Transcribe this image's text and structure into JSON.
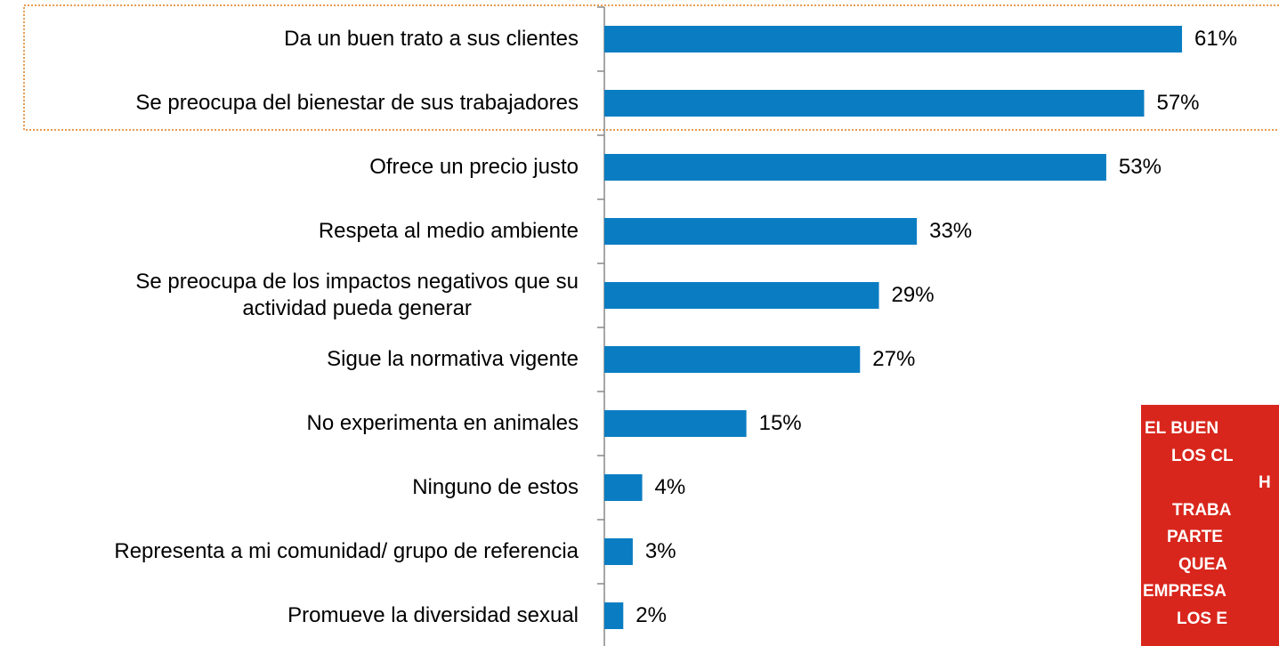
{
  "chart_data": {
    "type": "bar",
    "orientation": "horizontal",
    "categories": [
      "Da un buen trato a sus clientes",
      "Se preocupa del bienestar de sus trabajadores",
      "Ofrece un precio justo",
      "Respeta al medio ambiente",
      "Se preocupa de los impactos negativos que su\nactividad pueda generar",
      "Sigue la normativa vigente",
      "No experimenta en animales",
      "Ninguno de estos",
      "Representa a mi comunidad/ grupo de referencia",
      "Promueve la diversidad sexual"
    ],
    "values": [
      61,
      57,
      53,
      33,
      29,
      27,
      15,
      4,
      3,
      2
    ],
    "value_labels": [
      "61%",
      "57%",
      "53%",
      "33%",
      "29%",
      "27%",
      "15%",
      "4%",
      "3%",
      "2%"
    ],
    "color": "#0a7dc2",
    "annotation": [
      "EL BUEN",
      "LOS CL",
      "H",
      "TRABA",
      "PARTE",
      "QUEA",
      "EMPRESA",
      "LOS E"
    ]
  }
}
